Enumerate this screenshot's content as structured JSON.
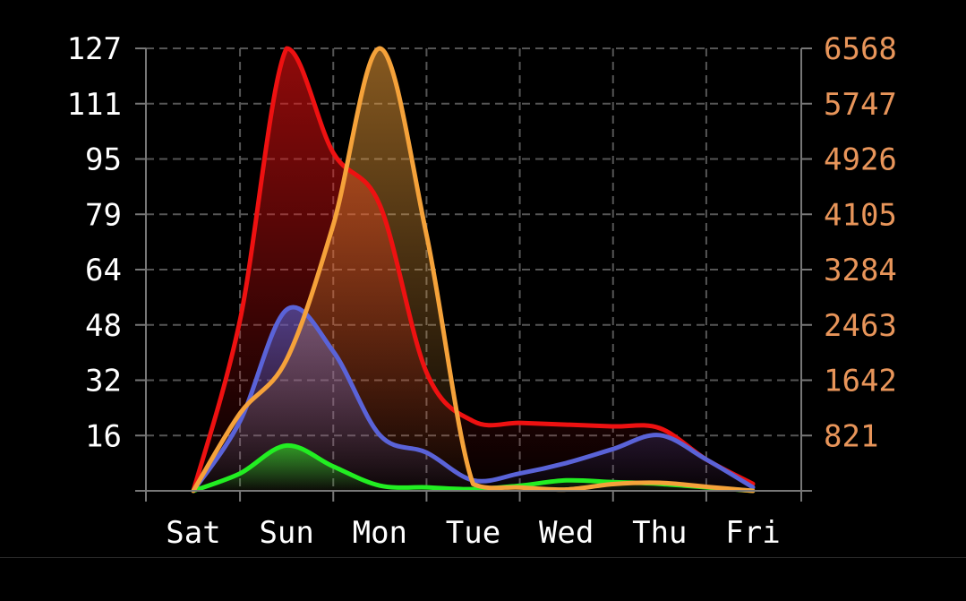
{
  "chart_data": {
    "type": "area",
    "title": "",
    "xlabel": "",
    "ylabel": "",
    "categories": [
      "Sat",
      "Sun",
      "Mon",
      "Tue",
      "Wed",
      "Thu",
      "Fri"
    ],
    "x": [
      0,
      0.5,
      1,
      1.5,
      2,
      2.5,
      3,
      3.5,
      4,
      4.5,
      5,
      5.5,
      6
    ],
    "y_left": {
      "ticks": [
        "16",
        "32",
        "48",
        "64",
        "79",
        "95",
        "111",
        "127"
      ],
      "ylim": [
        0,
        127
      ],
      "color": "#ffffff"
    },
    "y_right": {
      "ticks": [
        "821",
        "1642",
        "2463",
        "3284",
        "4105",
        "4926",
        "5747",
        "6568"
      ],
      "ylim": [
        0,
        6568
      ],
      "color": "#e8955a"
    },
    "grid": true,
    "series": [
      {
        "color": "#ee1111",
        "axis": "left",
        "values": [
          0,
          49,
          127,
          97,
          82,
          34,
          20,
          19.5,
          19,
          18.5,
          18,
          9,
          2
        ]
      },
      {
        "color": "#5a63d8",
        "axis": "left",
        "values": [
          0,
          20,
          52,
          40,
          16,
          11,
          3,
          5,
          8,
          12,
          16,
          9,
          1
        ]
      },
      {
        "color": "#22ee22",
        "axis": "left",
        "values": [
          0,
          5,
          13,
          7,
          1.5,
          1,
          0.5,
          1.5,
          3,
          2.5,
          2,
          1,
          0
        ]
      },
      {
        "color": "#f5a23a",
        "axis": "right",
        "values": [
          0,
          1150,
          1950,
          3950,
          6568,
          3800,
          100,
          50,
          20,
          100,
          120,
          60,
          0
        ]
      }
    ]
  }
}
